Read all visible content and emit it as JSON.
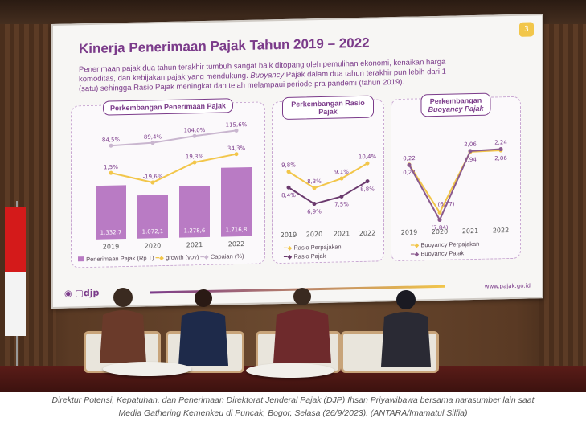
{
  "slide": {
    "number": "3",
    "title": "Kinerja Penerimaan Pajak Tahun 2019 – 2022",
    "description_1": "Penerimaan pajak dua tahun terakhir tumbuh sangat baik ditopang oleh pemulihan ekonomi, kenaikan harga",
    "description_2": "komoditas, dan kebijakan pajak yang mendukung.",
    "description_2_italic": "Buoyancy",
    "description_2_rest": "Pajak dalam dua tahun terakhir pun lebih dari 1",
    "description_3": "(satu) sehingga Rasio Pajak meningkat dan telah melampaui periode pra pandemi (tahun 2019).",
    "footer_logo": "djp",
    "footer_url": "www.pajak.go.id"
  },
  "chart_data": [
    {
      "type": "bar",
      "title": "Perkembangan Penerimaan Pajak",
      "categories": [
        "2019",
        "2020",
        "2021",
        "2022"
      ],
      "bar_labels": [
        "1.332,7",
        "1.072,1",
        "1.278,6",
        "1.716,8"
      ],
      "series": [
        {
          "name": "Penerimaan Pajak (Rp T)",
          "values": [
            1332.7,
            1072.1,
            1278.6,
            1716.8
          ],
          "color": "#b97bc4"
        },
        {
          "name": "growth (yoy)",
          "values": [
            1.5,
            -19.6,
            19.3,
            34.3
          ],
          "labels": [
            "1,5%",
            "-19,6%",
            "19,3%",
            "34,3%"
          ],
          "color": "#f2c64a"
        },
        {
          "name": "Capaian (%)",
          "values": [
            84.5,
            89.4,
            104.0,
            115.6
          ],
          "labels": [
            "84,5%",
            "89,4%",
            "104,0%",
            "115,6%"
          ],
          "color": "#c9b6cf"
        }
      ],
      "legend": [
        "Penerimaan Pajak (Rp T)",
        "growth (yoy)",
        "Capaian (%)"
      ]
    },
    {
      "type": "line",
      "title": "Perkembangan Rasio Pajak",
      "categories": [
        "2019",
        "2020",
        "2021",
        "2022"
      ],
      "series": [
        {
          "name": "Rasio Perpajakan",
          "values": [
            9.8,
            8.3,
            9.1,
            10.4
          ],
          "labels": [
            "9,8%",
            "8,3%",
            "9,1%",
            "10,4%"
          ],
          "color": "#f2c64a"
        },
        {
          "name": "Rasio Pajak",
          "values": [
            8.4,
            6.9,
            7.5,
            8.8
          ],
          "labels": [
            "8,4%",
            "6,9%",
            "7,5%",
            "8,8%"
          ],
          "color": "#6b3a6e"
        }
      ],
      "legend": [
        "Rasio Perpajakan",
        "Rasio Pajak"
      ]
    },
    {
      "type": "line",
      "title": "Perkembangan Buoyancy Pajak",
      "title_line1": "Perkembangan",
      "title_line2": "Buoyancy Pajak",
      "categories": [
        "2019",
        "2020",
        "2021",
        "2022"
      ],
      "series": [
        {
          "name": "Buoyancy Perpajakan",
          "values": [
            0.27,
            -6.77,
            1.94,
            2.06
          ],
          "labels": [
            "0,27",
            "(6,77)",
            "1,94",
            "2,06"
          ],
          "color": "#f2c64a"
        },
        {
          "name": "Buoyancy Pajak",
          "values": [
            0.22,
            -7.84,
            2.06,
            2.24
          ],
          "labels": [
            "0,22",
            "(7,84)",
            "2,06",
            "2,24"
          ],
          "color": "#8a5a8e"
        }
      ],
      "legend": [
        "Buoyancy Perpajakan",
        "Buoyancy Pajak"
      ]
    }
  ],
  "caption": {
    "line1": "Direktur Potensi, Kepatuhan, dan Penerimaan Direktorat Jenderal Pajak (DJP) Ihsan Priyawibawa bersama narasumber lain saat",
    "line2": "Media Gathering Kemenkeu di Puncak, Bogor, Selasa (26/9/2023). (ANTARA/Imamatul Silfia)"
  },
  "colors": {
    "purple": "#7b3b8a",
    "yellow": "#f2c64a",
    "flag_red": "#d41a1a"
  }
}
